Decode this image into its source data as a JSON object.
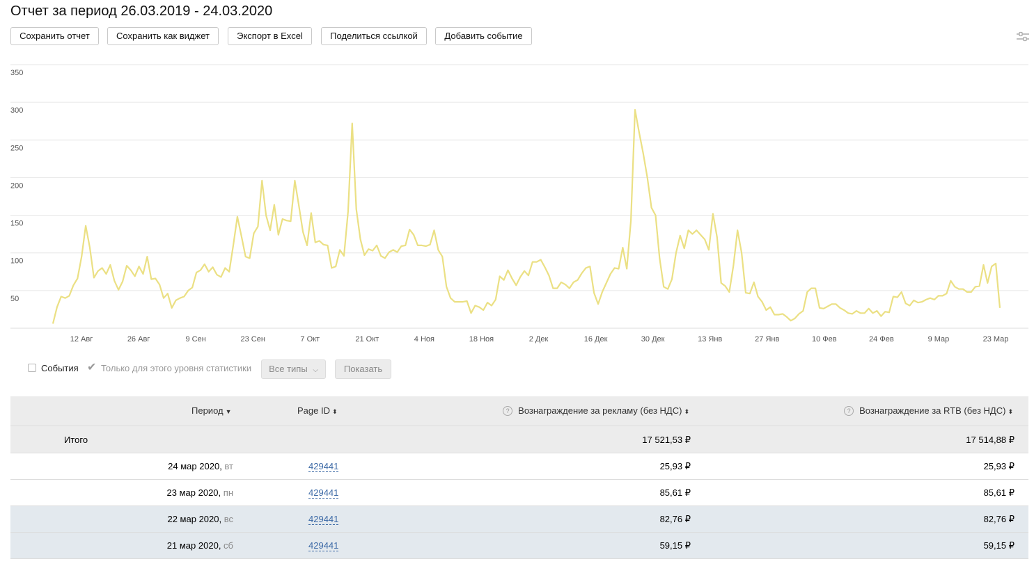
{
  "title": "Отчет за период 26.03.2019 - 24.03.2020",
  "toolbar": {
    "save_report": "Сохранить отчет",
    "save_widget": "Сохранить как виджет",
    "export_excel": "Экспорт в Excel",
    "share_link": "Поделиться ссылкой",
    "add_event": "Добавить событие"
  },
  "chart_data": {
    "type": "line",
    "y_ticks": [
      "350",
      "300",
      "250",
      "200",
      "150",
      "100",
      "50"
    ],
    "ylim": [
      0,
      350
    ],
    "x_ticks": [
      "12 Авг",
      "26 Авг",
      "9 Сен",
      "23 Сен",
      "7 Окт",
      "21 Окт",
      "4 Ноя",
      "18 Ноя",
      "2 Дек",
      "16 Дек",
      "30 Дек",
      "13 Янв",
      "27 Янв",
      "10 Фев",
      "24 Фев",
      "9 Мар",
      "23 Мар"
    ],
    "line_color": "#ebe084",
    "values": [
      6,
      28,
      42,
      40,
      43,
      57,
      66,
      95,
      136,
      107,
      67,
      76,
      80,
      72,
      84,
      63,
      51,
      62,
      83,
      77,
      69,
      82,
      72,
      95,
      65,
      66,
      58,
      40,
      46,
      27,
      37,
      40,
      42,
      50,
      54,
      74,
      77,
      85,
      75,
      81,
      71,
      68,
      80,
      75,
      110,
      148,
      122,
      95,
      93,
      126,
      135,
      196,
      150,
      130,
      164,
      124,
      145,
      143,
      142,
      196,
      163,
      128,
      110,
      153,
      114,
      116,
      111,
      110,
      80,
      82,
      104,
      96,
      155,
      272,
      158,
      118,
      97,
      105,
      103,
      110,
      96,
      93,
      101,
      104,
      101,
      109,
      110,
      131,
      124,
      110,
      110,
      109,
      111,
      130,
      104,
      95,
      55,
      40,
      35,
      35,
      35,
      36,
      20,
      30,
      28,
      24,
      34,
      30,
      38,
      69,
      64,
      77,
      66,
      57,
      68,
      76,
      70,
      88,
      88,
      91,
      81,
      70,
      53,
      53,
      61,
      58,
      53,
      61,
      64,
      73,
      80,
      82,
      47,
      32,
      48,
      60,
      72,
      80,
      79,
      107,
      79,
      143,
      290,
      260,
      232,
      200,
      160,
      150,
      93,
      55,
      52,
      65,
      100,
      123,
      106,
      130,
      125,
      130,
      124,
      118,
      104,
      152,
      121,
      60,
      56,
      48,
      83,
      130,
      100,
      47,
      46,
      61,
      42,
      35,
      24,
      28,
      18,
      18,
      19,
      15,
      10,
      13,
      19,
      23,
      48,
      53,
      53,
      27,
      26,
      29,
      32,
      32,
      27,
      24,
      20,
      19,
      23,
      20,
      20,
      26,
      20,
      23,
      16,
      22,
      21,
      42,
      41,
      48,
      33,
      30,
      37,
      34,
      35,
      38,
      40,
      38,
      43,
      43,
      46,
      63,
      55,
      52,
      52,
      48,
      48,
      55,
      56,
      84,
      60,
      82,
      86,
      27
    ]
  },
  "filters": {
    "events_label": "События",
    "only_level_label": "Только для этого уровня статистики",
    "all_types": "Все типы",
    "show": "Показать"
  },
  "table": {
    "headers": {
      "period": "Период",
      "page_id": "Page ID",
      "ad_reward": "Вознаграждение за рекламу (без НДС)",
      "rtb_reward": "Вознаграждение за RTB (без НДС)"
    },
    "total": {
      "label": "Итого",
      "ad_reward": "17 521,53 ₽",
      "rtb_reward": "17 514,88 ₽"
    },
    "rows": [
      {
        "date": "24 мар 2020",
        "weekday": "вт",
        "page_id": "429441",
        "ad": "25,93 ₽",
        "rtb": "25,93 ₽"
      },
      {
        "date": "23 мар 2020",
        "weekday": "пн",
        "page_id": "429441",
        "ad": "85,61 ₽",
        "rtb": "85,61 ₽"
      },
      {
        "date": "22 мар 2020",
        "weekday": "вс",
        "page_id": "429441",
        "ad": "82,76 ₽",
        "rtb": "82,76 ₽"
      },
      {
        "date": "21 мар 2020",
        "weekday": "сб",
        "page_id": "429441",
        "ad": "59,15 ₽",
        "rtb": "59,15 ₽"
      }
    ]
  }
}
